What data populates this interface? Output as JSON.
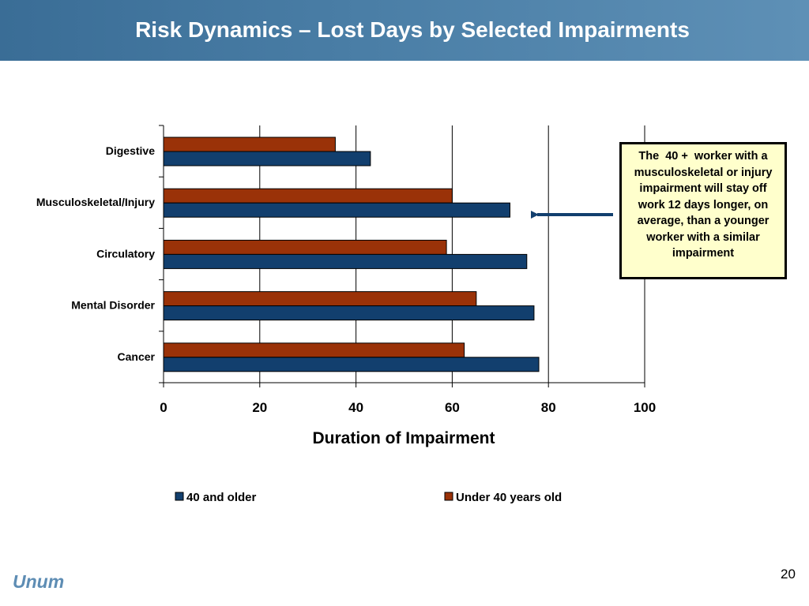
{
  "slide": {
    "title": "Risk Dynamics – Lost Days by Selected Impairments",
    "callout": "The  40 +  worker with a musculoskeletal or injury impairment will stay off work 12 days longer, on average, than a younger worker with a similar impairment",
    "logo": "Unum",
    "page_number": "20"
  },
  "colors": {
    "header": "#4a7ea6",
    "series_40_and_older": "#123f6e",
    "series_under_40": "#9a3208",
    "arrow": "#123f6e",
    "callout_bg": "#ffffcc"
  },
  "chart_data": {
    "type": "bar",
    "orientation": "horizontal",
    "title": "",
    "xlabel": "Duration of Impairment",
    "ylabel": "",
    "xlim": [
      0,
      100
    ],
    "xticks": [
      0,
      20,
      40,
      60,
      80,
      100
    ],
    "grid": "vertical major gridlines",
    "legend": "bottom",
    "categories": [
      "Digestive",
      "Musculoskeletal/Injury",
      "Circulatory",
      "Mental Disorder",
      "Cancer"
    ],
    "series": [
      {
        "name": "40 and older",
        "values": [
          43,
          72,
          75.5,
          77,
          78
        ]
      },
      {
        "name": "Under 40 years old",
        "values": [
          35.7,
          60,
          58.8,
          65,
          62.5
        ]
      }
    ]
  }
}
